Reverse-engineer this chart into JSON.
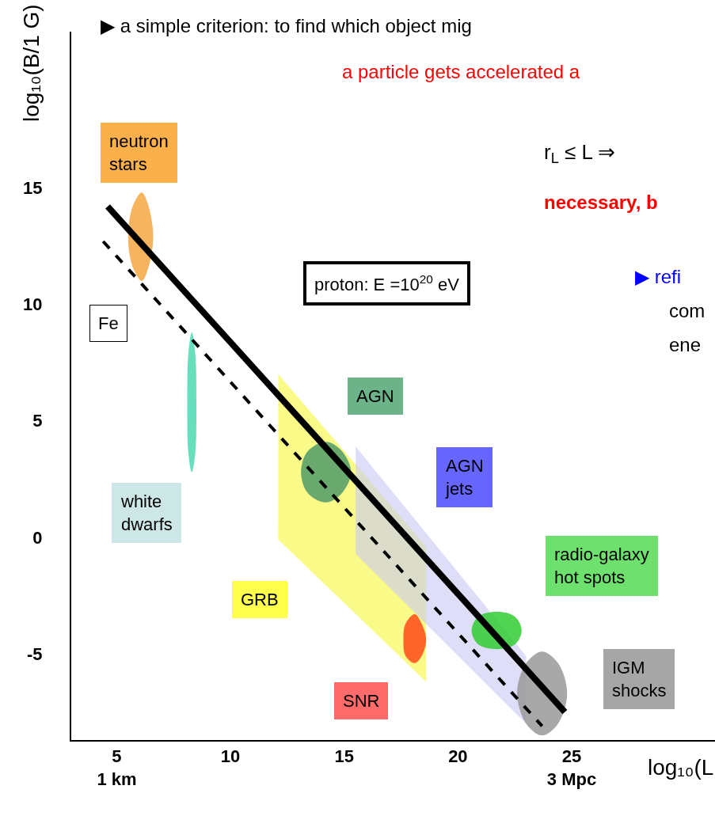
{
  "chart_data": {
    "type": "line",
    "xlabel": "log₁₀(L",
    "ylabel": "log₁₀(B/1 G)",
    "xlim": [
      3,
      31.3
    ],
    "ylim": [
      -8.7,
      21.7
    ],
    "xticks": [
      {
        "value": 5,
        "label": "5\n1 km"
      },
      10,
      15,
      20,
      {
        "value": 25,
        "label": "25\n3 Mpc"
      }
    ],
    "yticks": [
      -5,
      0,
      5,
      10,
      15
    ],
    "series": [
      {
        "type": "area",
        "color": "#f7f73a",
        "x": [
          12.1,
          18.6,
          18.6,
          12.1
        ],
        "values": [
          7.0,
          -0.4,
          -6.2,
          -0.1
        ]
      },
      {
        "type": "area",
        "color": "#c8c8f5",
        "x": [
          15.5,
          23.0,
          23.0,
          15.5
        ],
        "values": [
          3.9,
          -5.1,
          -8.0,
          -0.7
        ]
      },
      {
        "type": "area",
        "color": "#f5a742",
        "x": [
          6.6,
          6.4,
          6.1,
          5.7,
          5.5,
          5.7,
          6.1,
          6.4
        ],
        "values": [
          12.9,
          14.2,
          14.8,
          14.2,
          12.9,
          11.6,
          11.0,
          11.6
        ]
      },
      {
        "type": "area",
        "color": "#4dd9b0",
        "x": [
          8.5,
          8.45,
          8.3,
          8.15,
          8.1,
          8.15,
          8.3,
          8.45
        ],
        "values": [
          5.8,
          7.9,
          8.8,
          7.9,
          5.8,
          3.6,
          2.8,
          3.6
        ]
      },
      {
        "type": "area",
        "color": "#4f9a6a",
        "x": [
          15.3,
          14.9,
          14.2,
          13.4,
          13.1,
          13.4,
          14.2,
          14.9
        ],
        "values": [
          2.8,
          3.7,
          4.1,
          3.7,
          2.8,
          1.9,
          1.5,
          1.9
        ]
      },
      {
        "type": "area",
        "color": "#ff4a1a",
        "x": [
          18.6,
          18.4,
          18.1,
          17.7,
          17.6,
          17.7,
          18.1,
          18.4
        ],
        "values": [
          -4.4,
          -3.7,
          -3.3,
          -3.7,
          -4.4,
          -5.1,
          -5.4,
          -5.1
        ]
      },
      {
        "type": "area",
        "color": "#33cc33",
        "x": [
          22.8,
          22.5,
          21.7,
          20.9,
          20.6,
          20.9,
          21.7,
          22.5
        ],
        "values": [
          -4.0,
          -3.4,
          -3.2,
          -3.4,
          -4.0,
          -4.6,
          -4.8,
          -4.6
        ]
      },
      {
        "type": "area",
        "color": "#999999",
        "x": [
          24.8,
          24.4,
          23.7,
          23.0,
          22.6,
          23.0,
          23.7,
          24.4
        ],
        "values": [
          -6.7,
          -5.4,
          -4.9,
          -5.4,
          -6.7,
          -8.0,
          -8.5,
          -8.0
        ]
      },
      {
        "color": "#000000",
        "line_style": "solid",
        "x": [
          4.6,
          24.7
        ],
        "values": [
          14.2,
          -7.5
        ]
      },
      {
        "color": "#000000",
        "line_style": "dashed",
        "x": [
          4.4,
          23.7
        ],
        "values": [
          12.7,
          -8.1
        ]
      }
    ],
    "annotations": [
      "neutron\nstars",
      "white\ndwarfs",
      "GRB",
      "SNR",
      "AGN",
      "AGN\njets",
      "radio-galaxy\nhot spots",
      "IGM\nshocks",
      "proton: E =10$^{20}$ eV",
      "Fe",
      "▶ a simple criterion: to find which object mig",
      "a particle gets accelerated a",
      "r$_{L}$ ≤ L ⇒",
      "necessary, b",
      "▶ refi",
      "com",
      "ene"
    ]
  }
}
